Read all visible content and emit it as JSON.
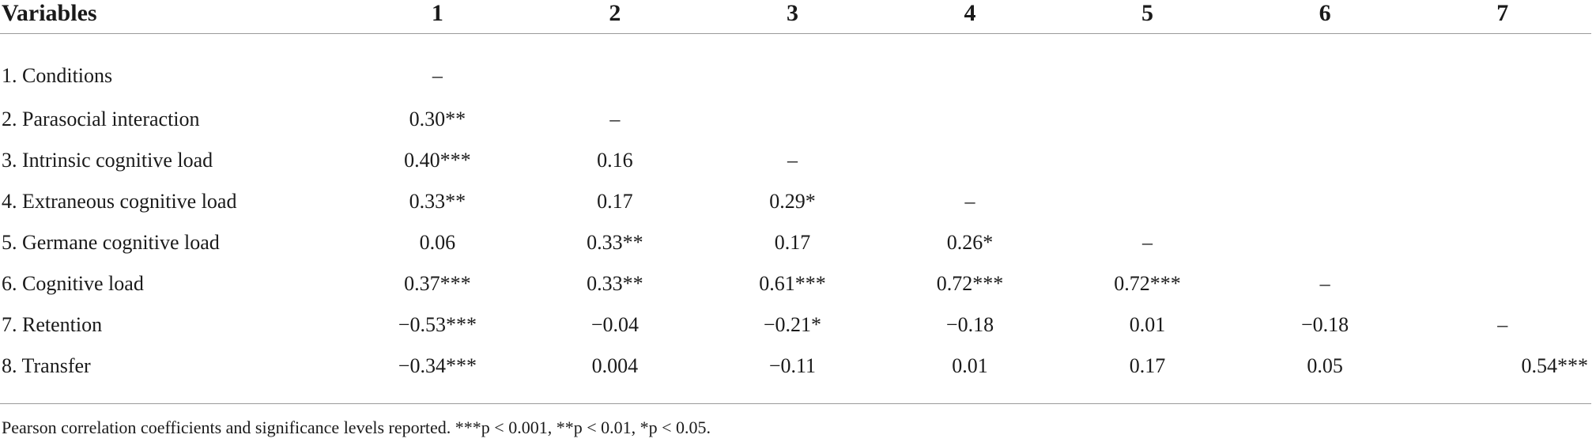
{
  "table": {
    "headers": [
      "Variables",
      "1",
      "2",
      "3",
      "4",
      "5",
      "6",
      "7"
    ],
    "rows": [
      {
        "label": "1. Conditions",
        "cells": [
          "–",
          "",
          "",
          "",
          "",
          "",
          ""
        ]
      },
      {
        "label": "2. Parasocial interaction",
        "cells": [
          "0.30**",
          "–",
          "",
          "",
          "",
          "",
          ""
        ]
      },
      {
        "label": "3. Intrinsic cognitive load",
        "cells": [
          "0.40***",
          "0.16",
          "–",
          "",
          "",
          "",
          ""
        ]
      },
      {
        "label": "4. Extraneous cognitive load",
        "cells": [
          "0.33**",
          "0.17",
          "0.29*",
          "–",
          "",
          "",
          ""
        ]
      },
      {
        "label": "5. Germane cognitive load",
        "cells": [
          "0.06",
          "0.33**",
          "0.17",
          "0.26*",
          "–",
          "",
          ""
        ]
      },
      {
        "label": "6. Cognitive load",
        "cells": [
          "0.37***",
          "0.33**",
          "0.61***",
          "0.72***",
          "0.72***",
          "–",
          ""
        ]
      },
      {
        "label": "7. Retention",
        "cells": [
          "−0.53***",
          "−0.04",
          "−0.21*",
          "−0.18",
          "0.01",
          "−0.18",
          "–"
        ]
      },
      {
        "label": "8. Transfer",
        "cells": [
          "−0.34***",
          "0.004",
          "−0.11",
          "0.01",
          "0.17",
          "0.05",
          "0.54***"
        ]
      }
    ]
  },
  "note": "Pearson correlation coefficients and significance levels reported. ***p < 0.001, **p < 0.01, *p < 0.05."
}
